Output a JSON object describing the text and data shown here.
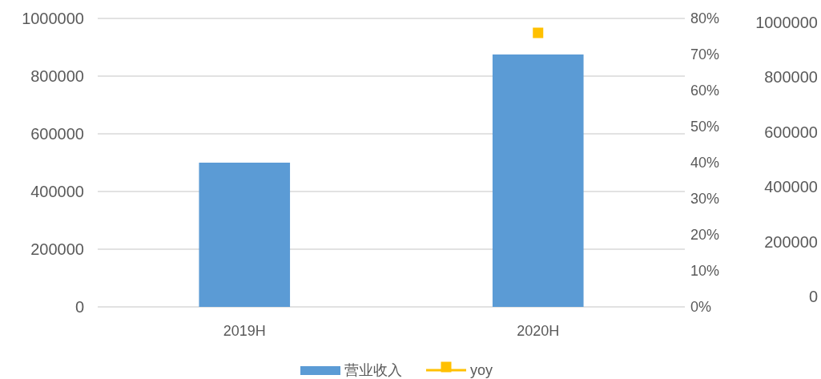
{
  "chart_data": {
    "type": "bar",
    "categories": [
      "2019H",
      "2020H"
    ],
    "series": [
      {
        "name": "营业收入",
        "color": "#5b9bd5",
        "values": [
          500000,
          875000
        ]
      },
      {
        "name": "yoy",
        "type": "line",
        "axis": "y2",
        "color": "#ffc000",
        "marker": "square",
        "values": [
          null,
          0.76
        ]
      }
    ],
    "ylim": [
      0,
      1000000
    ],
    "yticks": [
      0,
      200000,
      400000,
      600000,
      800000,
      1000000
    ],
    "y2lim": [
      0,
      0.8
    ],
    "y2ticks": [
      {
        "value": 0,
        "label": "0%"
      },
      {
        "value": 0.1,
        "label": "10%"
      },
      {
        "value": 0.2,
        "label": "20%"
      },
      {
        "value": 0.3,
        "label": "30%"
      },
      {
        "value": 0.4,
        "label": "40%"
      },
      {
        "value": 0.5,
        "label": "50%"
      },
      {
        "value": 0.6,
        "label": "60%"
      },
      {
        "value": 0.7,
        "label": "70%"
      },
      {
        "value": 0.8,
        "label": "80%"
      }
    ],
    "y3lim": [
      0,
      1000000
    ],
    "y3ticks": [
      0,
      200000,
      400000,
      600000,
      800000,
      1000000
    ],
    "grid": "y",
    "legend": "bottom"
  }
}
